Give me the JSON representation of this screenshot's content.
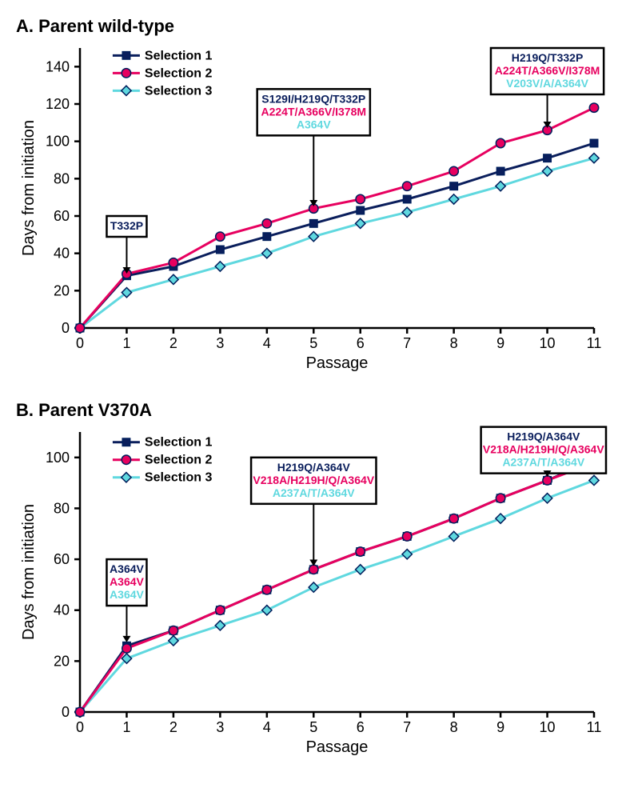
{
  "global": {
    "background_color": "#ffffff",
    "axis_color": "#000000",
    "grid_color": "#ffffff",
    "line_width": 3,
    "marker_size": 8,
    "axis_stroke_width": 2.5,
    "tick_length": 7,
    "tick_label_fontsize": 18,
    "axis_label_fontsize": 20,
    "legend_fontsize": 16,
    "panel_title_fontsize": 22,
    "annotation_fontsize": 14,
    "series_colors": {
      "selection1": "#0a1e5c",
      "selection2": "#e7005f",
      "selection3": "#5fd8df"
    },
    "series_markers": {
      "selection1": "square",
      "selection2": "circle",
      "selection3": "diamond"
    },
    "marker_stroke": "#001e5c"
  },
  "panelA": {
    "letter": "A.",
    "title": "Parent wild-type",
    "xlabel": "Passage",
    "ylabel": "Days from initiation",
    "xlim": [
      0,
      11
    ],
    "ylim": [
      0,
      150
    ],
    "xtick_step": 1,
    "ytick_step": 20,
    "legend": [
      {
        "label": "Selection 1",
        "key": "selection1"
      },
      {
        "label": "Selection 2",
        "key": "selection2"
      },
      {
        "label": "Selection 3",
        "key": "selection3"
      }
    ],
    "series": {
      "selection1": {
        "x": [
          0,
          1,
          2,
          3,
          4,
          5,
          6,
          7,
          8,
          9,
          10,
          11
        ],
        "y": [
          0,
          28,
          33,
          42,
          49,
          56,
          63,
          69,
          76,
          84,
          91,
          99
        ]
      },
      "selection2": {
        "x": [
          0,
          1,
          2,
          3,
          4,
          5,
          6,
          7,
          8,
          9,
          10,
          11
        ],
        "y": [
          0,
          29,
          35,
          49,
          56,
          64,
          69,
          76,
          84,
          99,
          106,
          118
        ]
      },
      "selection3": {
        "x": [
          0,
          1,
          2,
          3,
          4,
          5,
          6,
          7,
          8,
          9,
          10,
          11
        ],
        "y": [
          0,
          19,
          26,
          33,
          40,
          49,
          56,
          62,
          69,
          76,
          84,
          91
        ]
      }
    },
    "annotations": [
      {
        "x": 1,
        "y_top": 60,
        "arrow_to_y": 30,
        "lines": [
          {
            "text": "T332P",
            "color": "#0a1e5c"
          }
        ]
      },
      {
        "x": 5,
        "y_top": 128,
        "arrow_to_y": 66,
        "lines": [
          {
            "text": "S129I/H219Q/T332P",
            "color": "#0a1e5c"
          },
          {
            "text": "A224T/A366V/I378M",
            "color": "#e7005f"
          },
          {
            "text": "A364V",
            "color": "#5fd8df"
          }
        ]
      },
      {
        "x": 10,
        "y_top": 150,
        "arrow_to_y": 108,
        "lines": [
          {
            "text": "H219Q/T332P",
            "color": "#0a1e5c"
          },
          {
            "text": "A224T/A366V/I378M",
            "color": "#e7005f"
          },
          {
            "text": "V203V/A/A364V",
            "color": "#5fd8df"
          }
        ]
      }
    ]
  },
  "panelB": {
    "letter": "B.",
    "title": "Parent V370A",
    "xlabel": "Passage",
    "ylabel": "Days from initiation",
    "xlim": [
      0,
      11
    ],
    "ylim": [
      0,
      110
    ],
    "xtick_step": 1,
    "ytick_step": 20,
    "legend": [
      {
        "label": "Selection 1",
        "key": "selection1"
      },
      {
        "label": "Selection 2",
        "key": "selection2"
      },
      {
        "label": "Selection 3",
        "key": "selection3"
      }
    ],
    "series": {
      "selection1": {
        "x": [
          0,
          1,
          2,
          3,
          4,
          5,
          6,
          7,
          8,
          9,
          10,
          11
        ],
        "y": [
          0,
          26,
          32,
          40,
          48,
          56,
          63,
          69,
          76,
          84,
          91,
          99
        ]
      },
      "selection2": {
        "x": [
          0,
          1,
          2,
          3,
          4,
          5,
          6,
          7,
          8,
          9,
          10,
          11
        ],
        "y": [
          0,
          25,
          32,
          40,
          48,
          56,
          63,
          69,
          76,
          84,
          91,
          98
        ]
      },
      "selection3": {
        "x": [
          0,
          1,
          2,
          3,
          4,
          5,
          6,
          7,
          8,
          9,
          10,
          11
        ],
        "y": [
          0,
          21,
          28,
          34,
          40,
          49,
          56,
          62,
          69,
          76,
          84,
          91
        ]
      }
    },
    "annotations": [
      {
        "x": 1,
        "y_top": 60,
        "arrow_to_y": 28,
        "lines": [
          {
            "text": "A364V",
            "color": "#0a1e5c"
          },
          {
            "text": "A364V",
            "color": "#e7005f"
          },
          {
            "text": "A364V",
            "color": "#5fd8df"
          }
        ]
      },
      {
        "x": 5,
        "y_top": 100,
        "arrow_to_y": 58,
        "lines": [
          {
            "text": "H219Q/A364V",
            "color": "#0a1e5c"
          },
          {
            "text": "V218A/H219H/Q/A364V",
            "color": "#e7005f"
          },
          {
            "text": "A237A/T/A364V",
            "color": "#5fd8df"
          }
        ]
      },
      {
        "x": 10,
        "y_top": 112,
        "arrow_to_y": 93,
        "lines": [
          {
            "text": "H219Q/A364V",
            "color": "#0a1e5c"
          },
          {
            "text": "V218A/H219H/Q/A364V",
            "color": "#e7005f"
          },
          {
            "text": "A237A/T/A364V",
            "color": "#5fd8df"
          }
        ]
      }
    ]
  }
}
